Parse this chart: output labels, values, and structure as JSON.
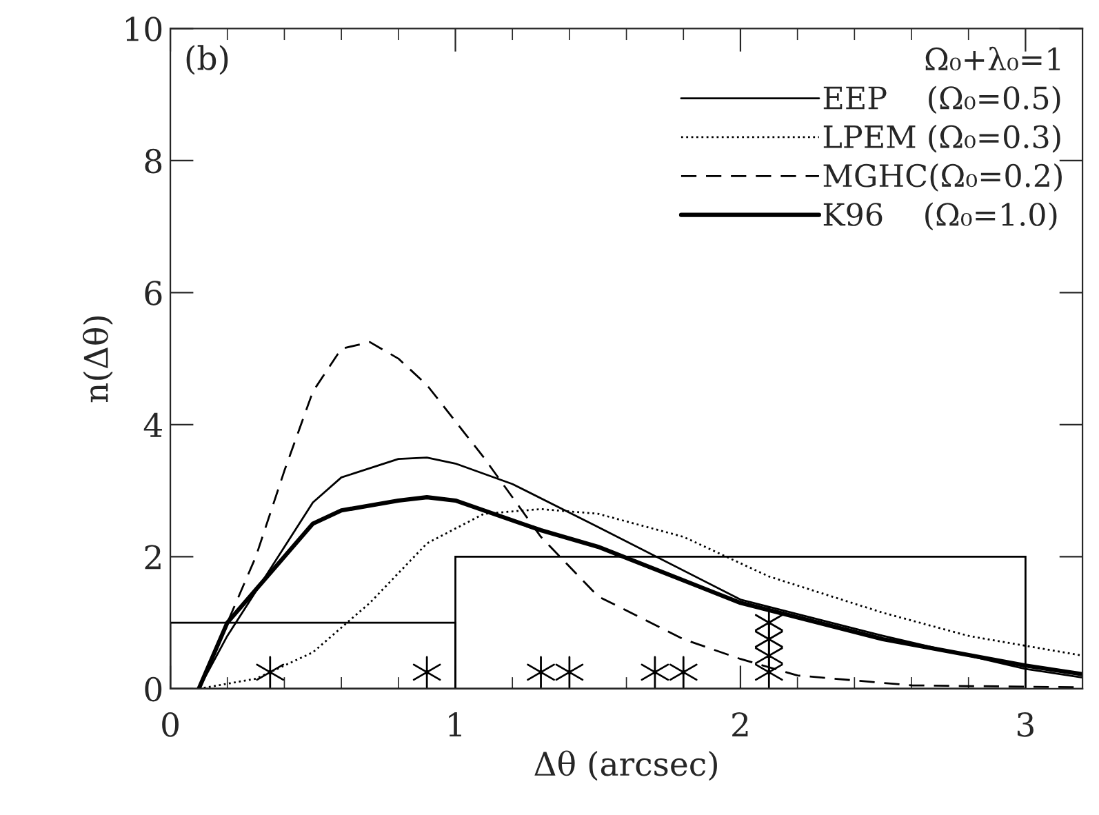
{
  "chart_data": {
    "type": "line",
    "xlabel": "Δθ (arcsec)",
    "ylabel": "n(Δθ)",
    "legend_title": "Ω₀+λ₀=1",
    "annotations": [
      "(b)"
    ],
    "xlim": [
      0,
      3.2
    ],
    "ylim": [
      0,
      10
    ],
    "xticks": [
      0,
      1,
      2,
      3
    ],
    "yticks": [
      0,
      2,
      4,
      6,
      8,
      10
    ],
    "grid": false,
    "legend": "top right",
    "series": [
      {
        "name": "EEP    (Ω₀=0.5)",
        "color": "#000000",
        "line_style": "solid",
        "x": [
          0.1,
          0.2,
          0.5,
          0.6,
          0.8,
          0.9,
          1.0,
          1.2,
          1.5,
          2.0,
          2.5,
          3.0,
          3.2
        ],
        "values": [
          0,
          0.8,
          2.82,
          3.2,
          3.48,
          3.5,
          3.41,
          3.1,
          2.45,
          1.35,
          0.8,
          0.3,
          0.17
        ]
      },
      {
        "name": "LPEM (Ω₀=0.3)",
        "color": "#000000",
        "line_style": "dotted",
        "x": [
          0.1,
          0.3,
          0.5,
          0.7,
          0.9,
          1.1,
          1.3,
          1.5,
          1.8,
          2.1,
          2.5,
          2.8,
          3.2
        ],
        "values": [
          0,
          0.15,
          0.55,
          1.3,
          2.2,
          2.65,
          2.72,
          2.65,
          2.3,
          1.7,
          1.15,
          0.8,
          0.5
        ]
      },
      {
        "name": "MGHC(Ω₀=0.2)",
        "color": "#000000",
        "line_style": "dashed",
        "x": [
          0.1,
          0.2,
          0.3,
          0.4,
          0.5,
          0.6,
          0.7,
          0.8,
          0.9,
          1.1,
          1.3,
          1.5,
          1.8,
          2.0,
          2.2,
          2.6,
          3.2
        ],
        "values": [
          0,
          1.0,
          2.0,
          3.3,
          4.5,
          5.15,
          5.25,
          5.0,
          4.6,
          3.5,
          2.3,
          1.4,
          0.75,
          0.45,
          0.2,
          0.05,
          0.02
        ]
      },
      {
        "name": "K96    (Ω₀=1.0)",
        "color": "#000000",
        "line_style": "solid",
        "x": [
          0.1,
          0.2,
          0.5,
          0.6,
          0.8,
          0.9,
          1.0,
          1.3,
          1.5,
          2.0,
          2.5,
          3.0,
          3.2
        ],
        "values": [
          0,
          1.0,
          2.5,
          2.7,
          2.85,
          2.9,
          2.85,
          2.4,
          2.15,
          1.3,
          0.75,
          0.35,
          0.22
        ]
      },
      {
        "type": "histogram",
        "color": "#000000",
        "bins": [
          0,
          1,
          3
        ],
        "values": [
          1,
          2
        ]
      },
      {
        "type": "scatter",
        "color": "#000000",
        "marker": "cross",
        "x": [
          0.35,
          0.9,
          1.3,
          1.4,
          1.7,
          1.8,
          2.1,
          2.1,
          2.1,
          2.1
        ],
        "values": [
          0.25,
          0.25,
          0.25,
          0.25,
          0.25,
          0.25,
          0.25,
          0.5,
          0.75,
          1.0
        ]
      }
    ]
  }
}
